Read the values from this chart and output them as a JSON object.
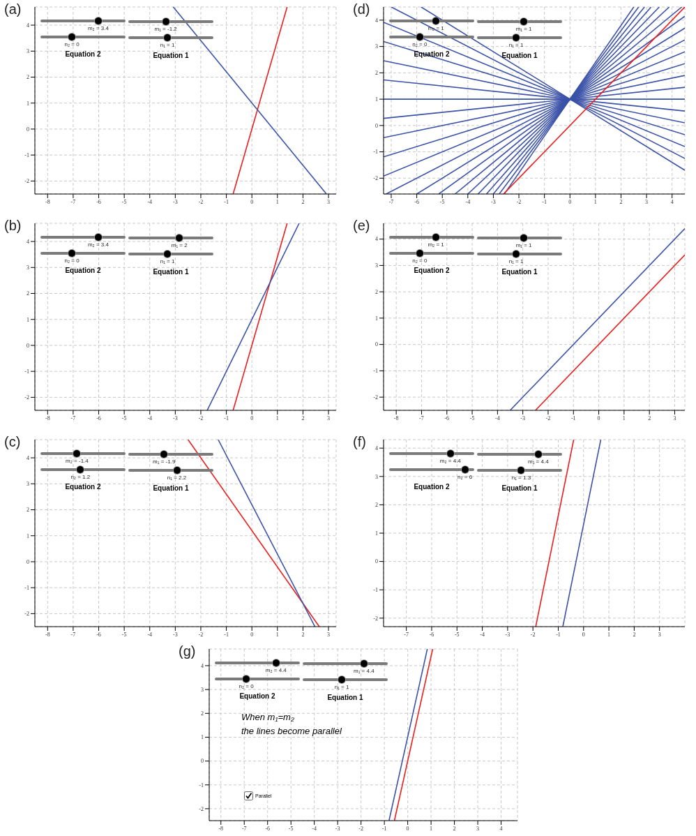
{
  "chart_data": [
    {
      "type": "line",
      "title": "(a)",
      "annotations": [
        "m₂ = 3.4",
        "n₂ = 0",
        "Equation 2",
        "m₁ = -1.2",
        "n₁ = 1",
        "Equation 1"
      ],
      "xlim": [
        -8.5,
        3.3
      ],
      "ylim": [
        -2.5,
        4.7
      ],
      "xticks": [
        -8,
        -7,
        -6,
        -5,
        -4,
        -3,
        -2,
        -1,
        0,
        1,
        2,
        3
      ],
      "yticks": [
        -2,
        -1,
        0,
        1,
        2,
        3,
        4
      ],
      "grid": true,
      "series": [
        {
          "color": "#ee1c1c",
          "x": [
            -0.735,
            1.38
          ],
          "values": [
            -2.5,
            4.7
          ]
        },
        {
          "color": "#3b52a8",
          "x": [
            -3.08,
            2.92
          ],
          "values": [
            4.7,
            -2.5
          ]
        }
      ]
    },
    {
      "type": "line",
      "title": "(d)",
      "annotations": [
        "m₂ = 1",
        "n₂ = 0",
        "Equation 2",
        "m₁ = 1",
        "n₁ = 1",
        "Equation 1"
      ],
      "xlim": [
        -7.3,
        4.5
      ],
      "ylim": [
        -2.6,
        4.5
      ],
      "xticks": [
        -7,
        -6,
        -5,
        -4,
        -3,
        -2,
        -1,
        0,
        1,
        2,
        3,
        4
      ],
      "yticks": [
        -2,
        -1,
        0,
        1,
        2,
        3,
        4
      ],
      "grid": true,
      "series": [
        {
          "color": "#3b52a8",
          "x": [
            -5.83,
            4.5
          ],
          "values": [
            4.5,
            -1.7
          ]
        },
        {
          "color": "#3b52a8",
          "x": [
            -7.0,
            4.5
          ],
          "values": [
            4.5,
            -1.25
          ]
        },
        {
          "color": "#3b52a8",
          "x": [
            -7.3,
            4.5
          ],
          "values": [
            3.92,
            -0.8
          ]
        },
        {
          "color": "#3b52a8",
          "x": [
            -7.3,
            4.5
          ],
          "values": [
            3.19,
            -0.35
          ]
        },
        {
          "color": "#3b52a8",
          "x": [
            -7.3,
            4.5
          ],
          "values": [
            2.46,
            0.1
          ]
        },
        {
          "color": "#3b52a8",
          "x": [
            -7.3,
            4.5
          ],
          "values": [
            1.73,
            0.55
          ]
        },
        {
          "color": "#3b52a8",
          "x": [
            -7.3,
            4.5
          ],
          "values": [
            1,
            1
          ]
        },
        {
          "color": "#3b52a8",
          "x": [
            -7.3,
            4.5
          ],
          "values": [
            0.27,
            1.45
          ]
        },
        {
          "color": "#3b52a8",
          "x": [
            -7.3,
            4.5
          ],
          "values": [
            -0.46,
            1.9
          ]
        },
        {
          "color": "#3b52a8",
          "x": [
            -7.3,
            4.5
          ],
          "values": [
            -1.19,
            2.35
          ]
        },
        {
          "color": "#3b52a8",
          "x": [
            -7.3,
            4.5
          ],
          "values": [
            -1.92,
            2.8
          ]
        },
        {
          "color": "#3b52a8",
          "x": [
            -7.2,
            4.5
          ],
          "values": [
            -2.6,
            3.25
          ]
        },
        {
          "color": "#3b52a8",
          "x": [
            -6.0,
            4.5
          ],
          "values": [
            -2.6,
            3.7
          ]
        },
        {
          "color": "#3b52a8",
          "x": [
            -5.14,
            4.5
          ],
          "values": [
            -2.6,
            4.15
          ]
        },
        {
          "color": "#3b52a8",
          "x": [
            -4.5,
            4.38
          ],
          "values": [
            -2.6,
            4.5
          ]
        },
        {
          "color": "#3b52a8",
          "x": [
            -4.0,
            3.89
          ],
          "values": [
            -2.6,
            4.5
          ]
        },
        {
          "color": "#3b52a8",
          "x": [
            -3.6,
            3.5
          ],
          "values": [
            -2.6,
            4.5
          ]
        },
        {
          "color": "#3b52a8",
          "x": [
            -3.27,
            3.18
          ],
          "values": [
            -2.6,
            4.5
          ]
        },
        {
          "color": "#3b52a8",
          "x": [
            -3.0,
            2.92
          ],
          "values": [
            -2.6,
            4.5
          ]
        },
        {
          "color": "#3b52a8",
          "x": [
            -2.77,
            2.69
          ],
          "values": [
            -2.6,
            4.5
          ]
        },
        {
          "color": "#3b52a8",
          "x": [
            -2.57,
            2.5
          ],
          "values": [
            -2.6,
            4.5
          ]
        },
        {
          "color": "#ee1c1c",
          "x": [
            -2.6,
            4.5
          ],
          "values": [
            -2.6,
            4.5
          ]
        }
      ]
    },
    {
      "type": "line",
      "title": "(b)",
      "annotations": [
        "m₂ = 3.4",
        "n₂ = 0",
        "Equation 2",
        "m₁ = 2",
        "n₁ = 1",
        "Equation 1"
      ],
      "xlim": [
        -8.5,
        3.3
      ],
      "ylim": [
        -2.5,
        4.7
      ],
      "xticks": [
        -8,
        -7,
        -6,
        -5,
        -4,
        -3,
        -2,
        -1,
        0,
        1,
        2,
        3
      ],
      "yticks": [
        -2,
        -1,
        0,
        1,
        2,
        3,
        4
      ],
      "grid": true,
      "series": [
        {
          "color": "#ee1c1c",
          "x": [
            -0.735,
            1.38
          ],
          "values": [
            -2.5,
            4.7
          ]
        },
        {
          "color": "#3b52a8",
          "x": [
            -1.75,
            1.85
          ],
          "values": [
            -2.5,
            4.7
          ]
        }
      ]
    },
    {
      "type": "line",
      "title": "(e)",
      "annotations": [
        "m₂ = 1",
        "n₂ = 0",
        "Equation 2",
        "m₁ = 1",
        "n₁ = 1",
        "Equation 1"
      ],
      "xlim": [
        -8.5,
        3.4
      ],
      "ylim": [
        -2.5,
        4.6
      ],
      "xticks": [
        -8,
        -7,
        -6,
        -5,
        -4,
        -3,
        -2,
        -1,
        0,
        1,
        2,
        3
      ],
      "yticks": [
        -2,
        -1,
        0,
        1,
        2,
        3,
        4
      ],
      "grid": true,
      "series": [
        {
          "color": "#ee1c1c",
          "x": [
            -2.5,
            3.4
          ],
          "values": [
            -2.5,
            3.4
          ]
        },
        {
          "color": "#3b52a8",
          "x": [
            -3.5,
            3.4
          ],
          "values": [
            -2.5,
            4.4
          ]
        }
      ]
    },
    {
      "type": "line",
      "title": "(c)",
      "annotations": [
        "m₂ = -1.4",
        "n₂ = 1.2",
        "Equation 2",
        "m₁ = -1.9",
        "n₁ = 2.2",
        "Equation 1"
      ],
      "xlim": [
        -8.5,
        3.3
      ],
      "ylim": [
        -2.5,
        4.7
      ],
      "xticks": [
        -8,
        -7,
        -6,
        -5,
        -4,
        -3,
        -2,
        -1,
        0,
        1,
        2,
        3
      ],
      "yticks": [
        -2,
        -1,
        0,
        1,
        2,
        3,
        4
      ],
      "grid": true,
      "series": [
        {
          "color": "#ee1c1c",
          "x": [
            -2.5,
            2.64
          ],
          "values": [
            4.7,
            -2.5
          ]
        },
        {
          "color": "#3b52a8",
          "x": [
            -1.32,
            2.47
          ],
          "values": [
            4.7,
            -2.5
          ]
        }
      ]
    },
    {
      "type": "line",
      "title": "(f)",
      "annotations": [
        "m₂ = 4.4",
        "n₂ = 6",
        "Equation 2",
        "m₁ = 4.4",
        "n₁ = 1.3",
        "Equation 1"
      ],
      "xlim": [
        -7.9,
        4.0
      ],
      "ylim": [
        -2.3,
        4.3
      ],
      "xticks": [
        -7,
        -6,
        -5,
        -4,
        -3,
        -2,
        -1,
        0,
        1,
        2,
        3
      ],
      "yticks": [
        -2,
        -1,
        0,
        1,
        2,
        3,
        4
      ],
      "grid": true,
      "series": [
        {
          "color": "#ee1c1c",
          "x": [
            -1.89,
            -0.39
          ],
          "values": [
            -2.3,
            4.3
          ]
        },
        {
          "color": "#3b52a8",
          "x": [
            -0.82,
            0.68
          ],
          "values": [
            -2.3,
            4.3
          ]
        }
      ]
    },
    {
      "type": "line",
      "title": "(g)",
      "annotations": [
        "m₂ = 4.4",
        "n₂ = 0",
        "Equation 2",
        "m₁ = 4.4",
        "n₁ = 1",
        "Equation 1",
        "When m₁=m₂",
        "the lines become parallel",
        "Parallel"
      ],
      "xlim": [
        -8.5,
        4.7
      ],
      "ylim": [
        -2.5,
        4.7
      ],
      "xticks": [
        -8,
        -7,
        -6,
        -5,
        -4,
        -3,
        -2,
        -1,
        0,
        1,
        2,
        3,
        4
      ],
      "yticks": [
        -2,
        -1,
        0,
        1,
        2,
        3,
        4
      ],
      "grid": true,
      "series": [
        {
          "color": "#ee1c1c",
          "x": [
            -0.57,
            1.07
          ],
          "values": [
            -2.5,
            4.7
          ]
        },
        {
          "color": "#3b52a8",
          "x": [
            -0.8,
            0.84
          ],
          "values": [
            -2.5,
            4.7
          ]
        }
      ]
    }
  ]
}
